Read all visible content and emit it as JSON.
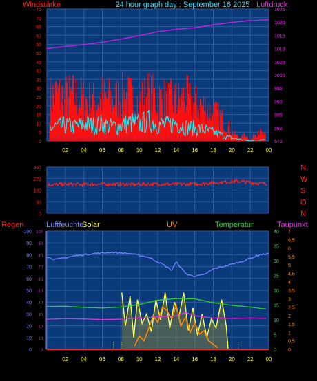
{
  "header": {
    "left_title": "Windstärke",
    "center_title": "24 hour graph day : September 16 2025",
    "right_title": "Luftdruck"
  },
  "colors": {
    "background": "#000000",
    "plot_bg": "#0a3a7a",
    "grid": "#2e5c9c",
    "wind_gust": "#ff1010",
    "wind_speed": "#20e8f0",
    "pressure": "#c020e0",
    "direction": "#ff2020",
    "humidity": "#7080ff",
    "solar": "#ffff40",
    "uv": "#ff8800",
    "temperature": "#30d030",
    "dewpoint": "#e030e0",
    "rain": "#ff2020",
    "axis_yellow": "#ffff00"
  },
  "chart_data": [
    {
      "id": "wind_pressure",
      "type": "line",
      "left_axis_label": "Windstärke",
      "right_axis_label": "Luftdruck",
      "left_ticks": [
        "0",
        "5",
        "10",
        "15",
        "20",
        "25",
        "30",
        "35",
        "40",
        "45",
        "50",
        "55",
        "60",
        "65",
        "70",
        "75"
      ],
      "right_ticks": [
        "975",
        "980",
        "985",
        "990",
        "995",
        "1000",
        "1005",
        "1010",
        "1015",
        "1020",
        "1025"
      ],
      "x_ticks": [
        "02",
        "04",
        "06",
        "08",
        "10",
        "12",
        "14",
        "16",
        "18",
        "20",
        "22",
        "00"
      ],
      "ylim_left": [
        0,
        75
      ],
      "ylim_right": [
        975,
        1025
      ],
      "series": [
        {
          "key": "gust",
          "hours": [
            0,
            1,
            2,
            3,
            4,
            5,
            6,
            7,
            8,
            9,
            10,
            11,
            12,
            13,
            14,
            15,
            16,
            17,
            18,
            19,
            19.6,
            20.2,
            21,
            21.5,
            22,
            22.8,
            23.4,
            24
          ],
          "values": [
            28,
            32,
            30,
            31,
            29,
            27,
            30,
            28,
            31,
            30,
            27,
            32,
            29,
            28,
            27,
            30,
            25,
            24,
            20,
            15,
            10,
            5,
            2,
            5,
            0,
            8,
            4,
            3
          ]
        },
        {
          "key": "speed",
          "hours": [
            0,
            1,
            2,
            3,
            4,
            5,
            6,
            7,
            8,
            9,
            10,
            11,
            12,
            13,
            14,
            15,
            16,
            17,
            18,
            19,
            20,
            21,
            22,
            23,
            24
          ],
          "values": [
            9,
            10,
            11,
            10,
            12,
            11,
            12,
            10,
            11,
            13,
            12,
            14,
            12,
            11,
            13,
            10,
            9,
            8,
            6,
            4,
            2,
            1,
            0,
            1,
            1
          ]
        },
        {
          "key": "pressure",
          "hours": [
            0,
            2,
            4,
            6,
            8,
            10,
            12,
            14,
            16,
            18,
            20,
            22,
            24
          ],
          "values": [
            1010.0,
            1010.8,
            1011.5,
            1012.4,
            1013.6,
            1014.9,
            1016.4,
            1017.3,
            1017.9,
            1019.0,
            1019.9,
            1020.6,
            1020.9
          ]
        }
      ]
    },
    {
      "id": "wind_direction",
      "type": "scatter",
      "left_ticks": [
        "0",
        "90",
        "180",
        "270",
        "360"
      ],
      "right_labels": [
        "N",
        "W",
        "S",
        "O",
        "N"
      ],
      "ylim": [
        0,
        360
      ],
      "x_ticks": [],
      "series": [
        {
          "key": "direction",
          "hours": [
            0,
            2,
            4,
            6,
            8,
            10,
            12,
            14,
            16,
            17,
            18,
            19,
            20,
            21,
            22,
            23,
            24
          ],
          "values": [
            222,
            226,
            224,
            228,
            225,
            225,
            227,
            226,
            228,
            231,
            238,
            242,
            247,
            249,
            240,
            233,
            232
          ]
        }
      ]
    },
    {
      "id": "humidity_solar_temp",
      "type": "line",
      "labels": {
        "rain": "Regen",
        "humidity": "Luftfeuchte",
        "solar": "Solar",
        "uv": "UV",
        "temperature": "Temperatur",
        "dewpoint": "Taupunkt"
      },
      "left_ticks": [
        "0",
        "10",
        "20",
        "30",
        "40",
        "50",
        "60",
        "70",
        "80",
        "90",
        "100"
      ],
      "temp_ticks": [
        "0",
        "5",
        "10",
        "15",
        "20",
        "25",
        "30",
        "35",
        "40"
      ],
      "dew_ticks": [
        "0",
        "0,5",
        "1",
        "1,5",
        "2",
        "2,5",
        "3",
        "3,5",
        "4",
        "4,5",
        "5",
        "5,5",
        "6",
        "6,5",
        "7"
      ],
      "x_ticks": [
        "02",
        "04",
        "06",
        "08",
        "10",
        "12",
        "14",
        "16",
        "18",
        "20",
        "22",
        "00"
      ],
      "ylim_left": [
        0,
        100
      ],
      "ylim_temp": [
        0,
        40
      ],
      "series": [
        {
          "key": "humidity",
          "hours": [
            0,
            1,
            3,
            5,
            7,
            9,
            11,
            12.5,
            13.5,
            14,
            14.6,
            15.2,
            16,
            17,
            18,
            19,
            20,
            21,
            22,
            23,
            24
          ],
          "values": [
            78,
            76,
            79,
            81,
            82,
            81,
            78,
            72,
            67,
            74,
            68,
            63,
            62,
            63,
            68,
            70,
            72,
            74,
            77,
            80,
            81
          ]
        },
        {
          "key": "temperature",
          "hours": [
            0,
            2,
            4,
            6,
            8,
            10,
            12,
            14,
            16,
            18,
            20,
            22,
            24
          ],
          "values": [
            14.5,
            14.6,
            14.2,
            14.0,
            14.3,
            15.2,
            16.6,
            17.2,
            17.1,
            15.8,
            14.9,
            14.3,
            13.5
          ]
        },
        {
          "key": "dewpoint",
          "hours": [
            0,
            2,
            4,
            6,
            8,
            10,
            12,
            14,
            15,
            16,
            18,
            20,
            22,
            24
          ],
          "values": [
            10.2,
            10.4,
            10.3,
            10.1,
            10.2,
            10.6,
            11.0,
            11.3,
            12.5,
            11.4,
            10.6,
            10.5,
            10.6,
            10.5
          ]
        },
        {
          "key": "solar",
          "hours": [
            8.1,
            8.5,
            9,
            9.4,
            9.8,
            10.3,
            10.8,
            11.3,
            11.8,
            12.3,
            12.8,
            13.3,
            13.8,
            14.3,
            14.8,
            15.3,
            15.8,
            16.3,
            16.8,
            17.3,
            17.8,
            18.3,
            18.9,
            19.4,
            19.6
          ],
          "values": [
            48,
            20,
            45,
            10,
            42,
            22,
            30,
            15,
            42,
            25,
            48,
            18,
            40,
            28,
            48,
            16,
            35,
            12,
            30,
            10,
            26,
            18,
            42,
            20,
            0
          ]
        },
        {
          "key": "uv",
          "hours": [
            9.5,
            10,
            10.5,
            11,
            11.5,
            12,
            12.5,
            13,
            13.5,
            14,
            14.5,
            15,
            15.5,
            16,
            16.5,
            17,
            17.5,
            18,
            18.5
          ],
          "values": [
            0.2,
            0.8,
            0.5,
            1.2,
            2.0,
            1.6,
            2.5,
            2.3,
            1.8,
            2.6,
            1.4,
            1.9,
            1.0,
            1.6,
            0.9,
            1.1,
            0.5,
            0.3,
            0.1
          ]
        }
      ]
    }
  ]
}
